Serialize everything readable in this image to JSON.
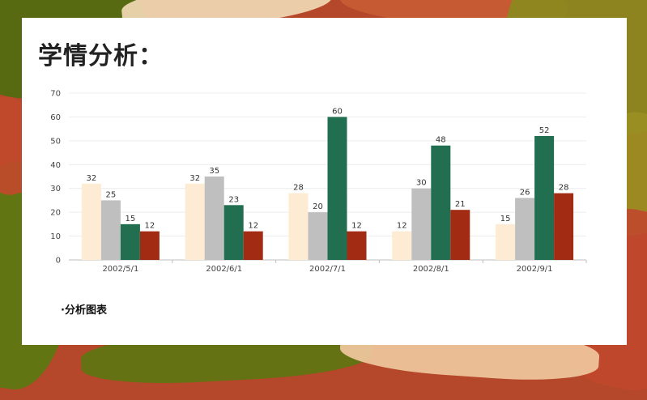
{
  "page": {
    "title": "学情分析：",
    "caption": "·分析图表"
  },
  "colors": {
    "background_accent": "#b5472a",
    "olive": "#8a8a1e",
    "green": "#5a7a10",
    "cream": "#f4ddb8"
  },
  "chart_data": {
    "type": "bar",
    "categories": [
      "2002/5/1",
      "2002/6/1",
      "2002/7/1",
      "2002/8/1",
      "2002/9/1"
    ],
    "series": [
      {
        "values": [
          32,
          32,
          28,
          12,
          15
        ],
        "color": "#fdebd3"
      },
      {
        "values": [
          25,
          35,
          20,
          30,
          26
        ],
        "color": "#bfbfbf"
      },
      {
        "values": [
          15,
          23,
          60,
          48,
          52
        ],
        "color": "#226e51"
      },
      {
        "values": [
          12,
          12,
          12,
          21,
          28
        ],
        "color": "#a22b14"
      }
    ],
    "ylim": [
      0,
      70
    ],
    "yticks": [
      0,
      10,
      20,
      30,
      40,
      50,
      60,
      70
    ],
    "grid": true,
    "data_labels": true,
    "legend": "none"
  }
}
